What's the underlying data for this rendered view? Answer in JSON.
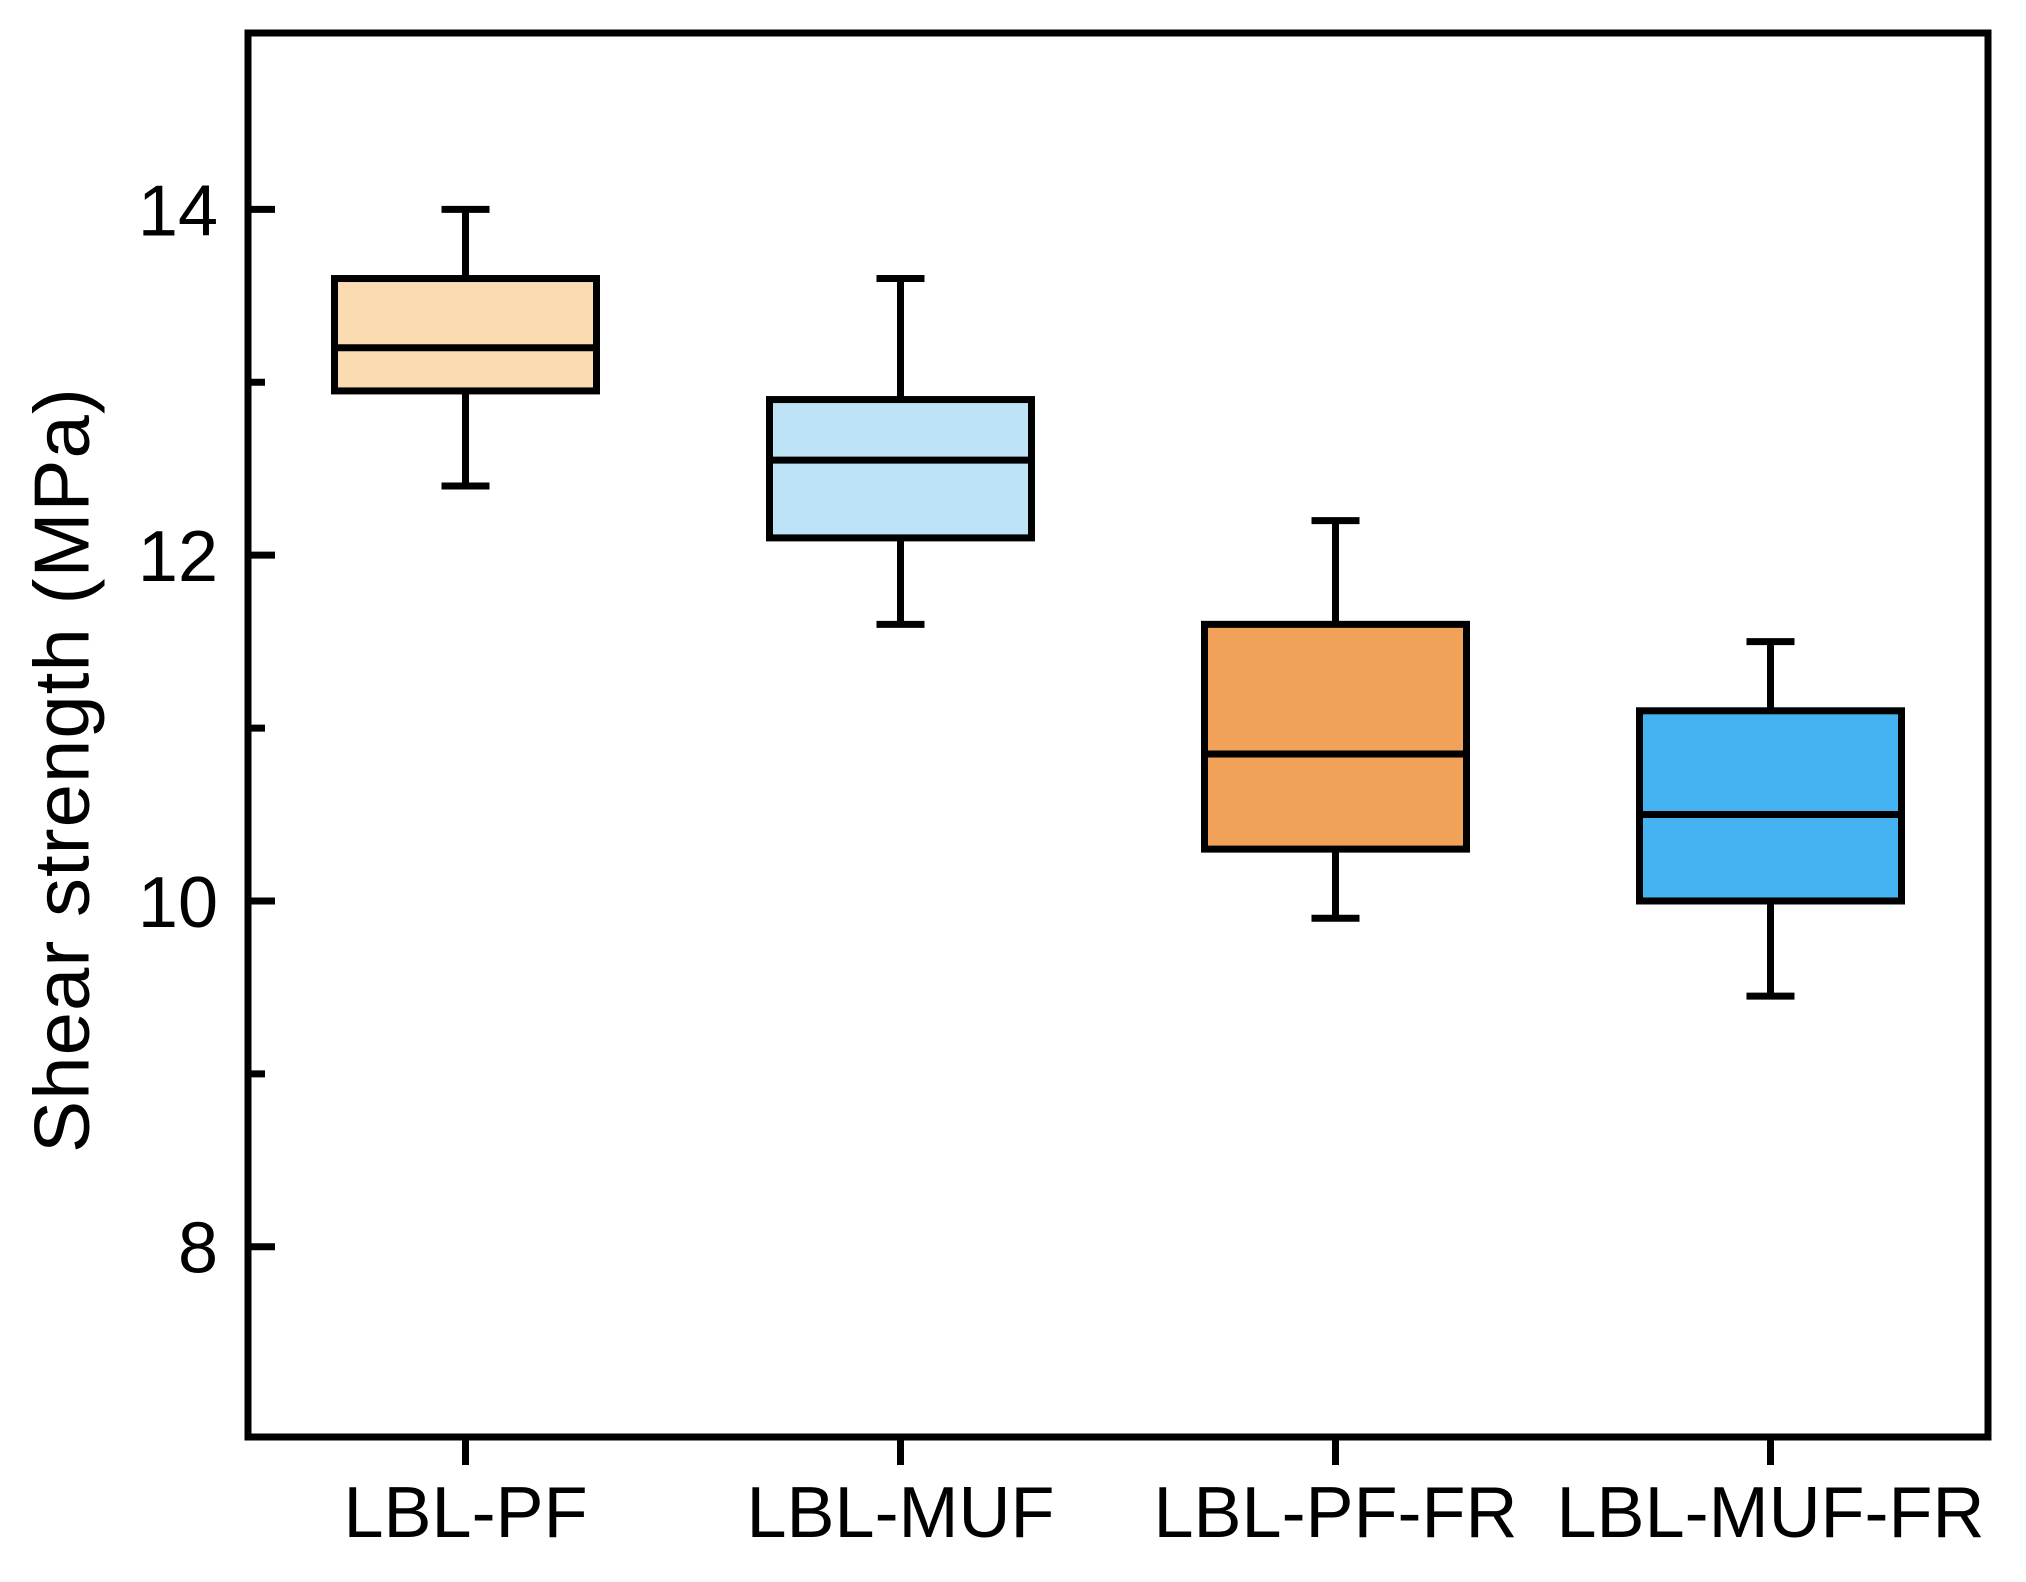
{
  "figure": {
    "background": "#ffffff",
    "frame_color": "#000000",
    "text_color": "#000000"
  },
  "chart_data": {
    "type": "boxplot",
    "title": "",
    "xlabel": "",
    "ylabel": "Shear strength (MPa)",
    "categories": [
      "LBL-PF",
      "LBL-MUF",
      "LBL-PF-FR",
      "LBL-MUF-FR"
    ],
    "y_axis": {
      "min": 6.9,
      "max": 15.02,
      "major_ticks": [
        8,
        10,
        12,
        14
      ],
      "major_tick_labels": [
        "8",
        "10",
        "12",
        "14"
      ],
      "minor_ticks": [
        9,
        11,
        13
      ],
      "unit": "MPa"
    },
    "grid": "off",
    "legend": "none",
    "series": [
      {
        "name": "LBL-PF",
        "whisker_low": 12.4,
        "q1": 12.95,
        "median": 13.2,
        "q3": 13.6,
        "whisker_high": 14.0,
        "fill": "#FBDCB2",
        "stroke": "#000000"
      },
      {
        "name": "LBL-MUF",
        "whisker_low": 11.6,
        "q1": 12.1,
        "median": 12.55,
        "q3": 12.9,
        "whisker_high": 13.6,
        "fill": "#BEE3F6",
        "stroke": "#000000"
      },
      {
        "name": "LBL-PF-FR",
        "whisker_low": 9.9,
        "q1": 10.3,
        "median": 10.85,
        "q3": 11.6,
        "whisker_high": 12.2,
        "fill": "#F2A159",
        "stroke": "#000000"
      },
      {
        "name": "LBL-MUF-FR",
        "whisker_low": 9.45,
        "q1": 10.0,
        "median": 10.5,
        "q3": 11.1,
        "whisker_high": 11.5,
        "fill": "#45B3F1",
        "stroke": "#000000"
      }
    ]
  }
}
